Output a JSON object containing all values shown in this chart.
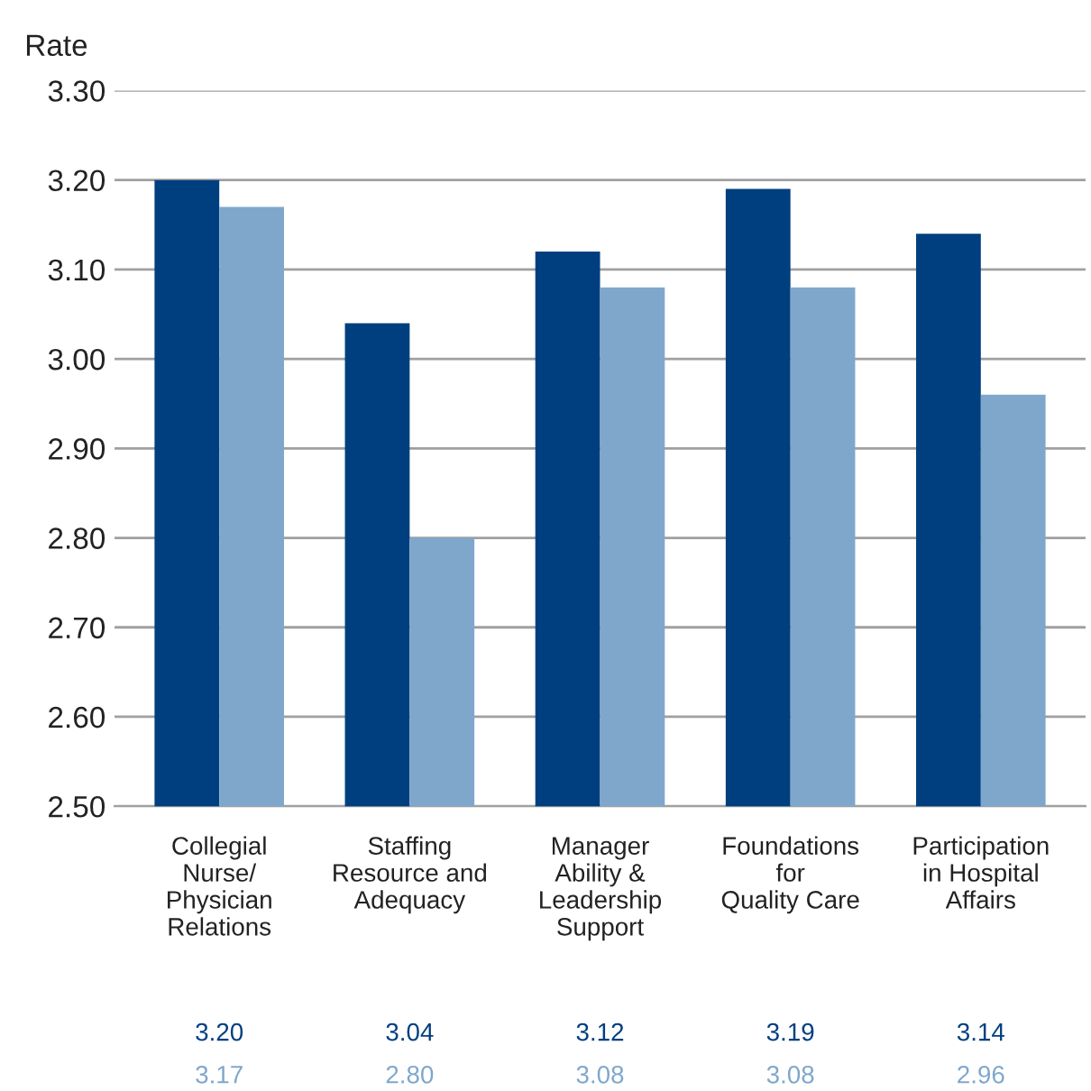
{
  "chart_data": {
    "type": "bar",
    "ylabel": "Rate",
    "categories": [
      "Collegial\nNurse/\nPhysician\nRelations",
      "Staffing\nResource and\nAdequacy",
      "Manager\nAbility &\nLeadership\nSupport",
      "Foundations\nfor\nQuality Care",
      "Participation\nin Hospital\nAffairs"
    ],
    "series": [
      {
        "color": "#003f7f",
        "values": [
          3.2,
          3.04,
          3.12,
          3.19,
          3.14
        ],
        "value_labels": [
          "3.20",
          "3.04",
          "3.12",
          "3.19",
          "3.14"
        ]
      },
      {
        "color": "#7fa7cc",
        "values": [
          3.17,
          2.8,
          3.08,
          3.08,
          2.96
        ],
        "value_labels": [
          "3.17",
          "2.80",
          "3.08",
          "3.08",
          "2.96"
        ]
      }
    ],
    "ylim": [
      2.5,
      3.3
    ],
    "yticks": [
      {
        "value": 2.5,
        "label": "2.50"
      },
      {
        "value": 2.6,
        "label": "2.60"
      },
      {
        "value": 2.7,
        "label": "2.70"
      },
      {
        "value": 2.8,
        "label": "2.80"
      },
      {
        "value": 2.9,
        "label": "2.90"
      },
      {
        "value": 3.0,
        "label": "3.00"
      },
      {
        "value": 3.1,
        "label": "3.10"
      },
      {
        "value": 3.2,
        "label": "3.20"
      },
      {
        "value": 3.3,
        "label": "3.30"
      }
    ],
    "grid": "y",
    "legend": false
  }
}
